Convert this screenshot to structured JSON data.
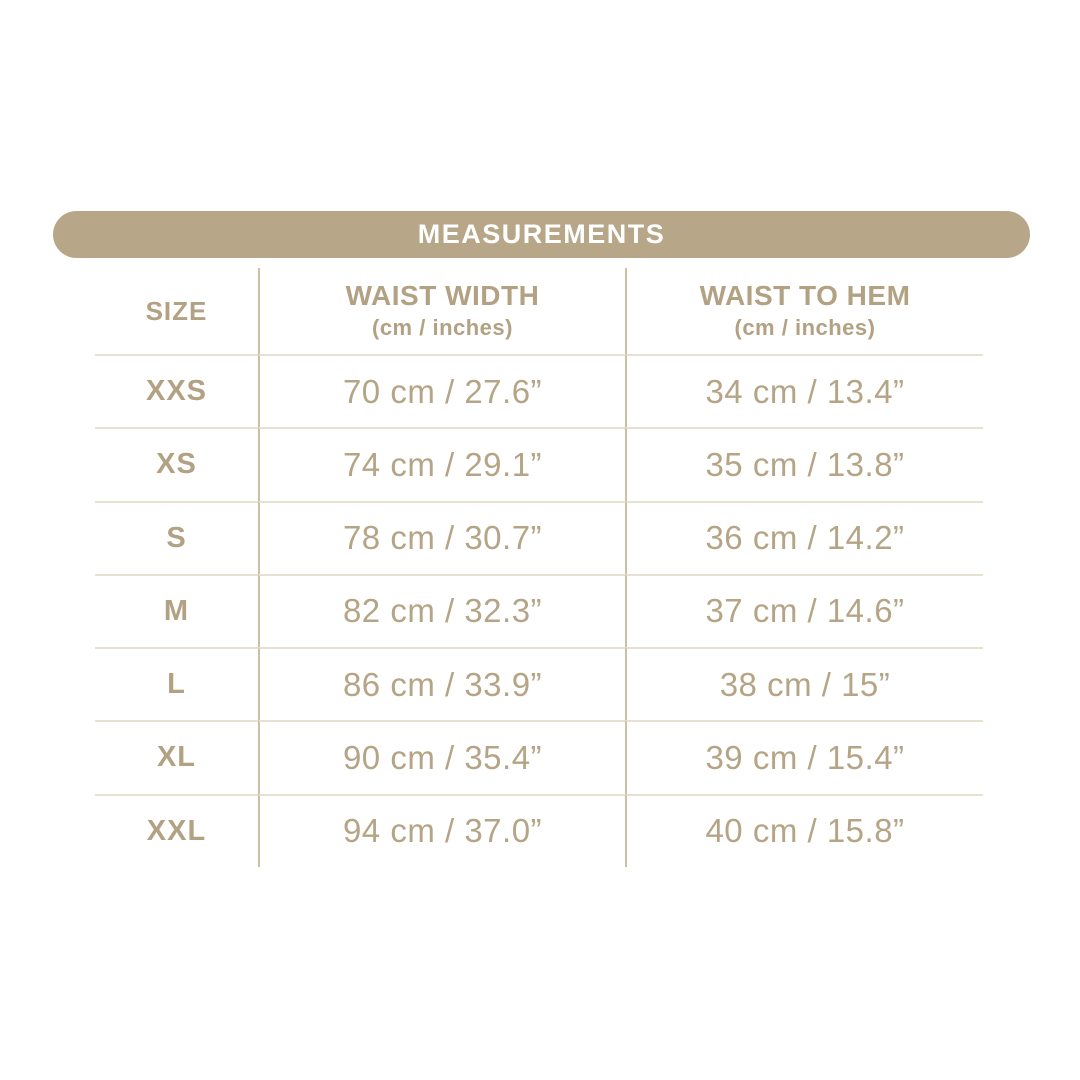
{
  "banner": {
    "title": "MEASUREMENTS"
  },
  "colors": {
    "banner_bg": "#B7A688",
    "banner_text": "#FFFFFF",
    "label_text": "#B2A183",
    "value_text": "#B5A586",
    "horizontal_rule": "#E8E0D2",
    "vertical_rule": "#CDBEA4",
    "background": "#FFFFFF"
  },
  "table": {
    "columns": [
      {
        "label": "SIZE",
        "sub": ""
      },
      {
        "label": "WAIST WIDTH",
        "sub": "(cm / inches)"
      },
      {
        "label": "WAIST TO HEM",
        "sub": "(cm / inches)"
      }
    ],
    "rows": [
      {
        "size": "XXS",
        "waist_width": "70 cm / 27.6”",
        "waist_to_hem": "34 cm / 13.4”"
      },
      {
        "size": "XS",
        "waist_width": "74 cm / 29.1”",
        "waist_to_hem": "35 cm / 13.8”"
      },
      {
        "size": "S",
        "waist_width": "78 cm / 30.7”",
        "waist_to_hem": "36 cm / 14.2”"
      },
      {
        "size": "M",
        "waist_width": "82 cm / 32.3”",
        "waist_to_hem": "37 cm / 14.6”"
      },
      {
        "size": "L",
        "waist_width": "86 cm / 33.9”",
        "waist_to_hem": "38 cm / 15”"
      },
      {
        "size": "XL",
        "waist_width": "90 cm / 35.4”",
        "waist_to_hem": "39 cm / 15.4”"
      },
      {
        "size": "XXL",
        "waist_width": "94 cm / 37.0”",
        "waist_to_hem": "40 cm / 15.8”"
      }
    ]
  },
  "chart_data": {
    "type": "table",
    "title": "MEASUREMENTS",
    "columns": [
      "SIZE",
      "WAIST WIDTH (cm / inches)",
      "WAIST TO HEM (cm / inches)"
    ],
    "rows": [
      [
        "XXS",
        "70 cm / 27.6”",
        "34 cm / 13.4”"
      ],
      [
        "XS",
        "74 cm / 29.1”",
        "35 cm / 13.8”"
      ],
      [
        "S",
        "78 cm / 30.7”",
        "36 cm / 14.2”"
      ],
      [
        "M",
        "82 cm / 32.3”",
        "37 cm / 14.6”"
      ],
      [
        "L",
        "86 cm / 33.9”",
        "38 cm / 15”"
      ],
      [
        "XL",
        "90 cm / 35.4”",
        "39 cm / 15.4”"
      ],
      [
        "XXL",
        "94 cm / 37.0”",
        "40 cm / 15.8”"
      ]
    ]
  }
}
